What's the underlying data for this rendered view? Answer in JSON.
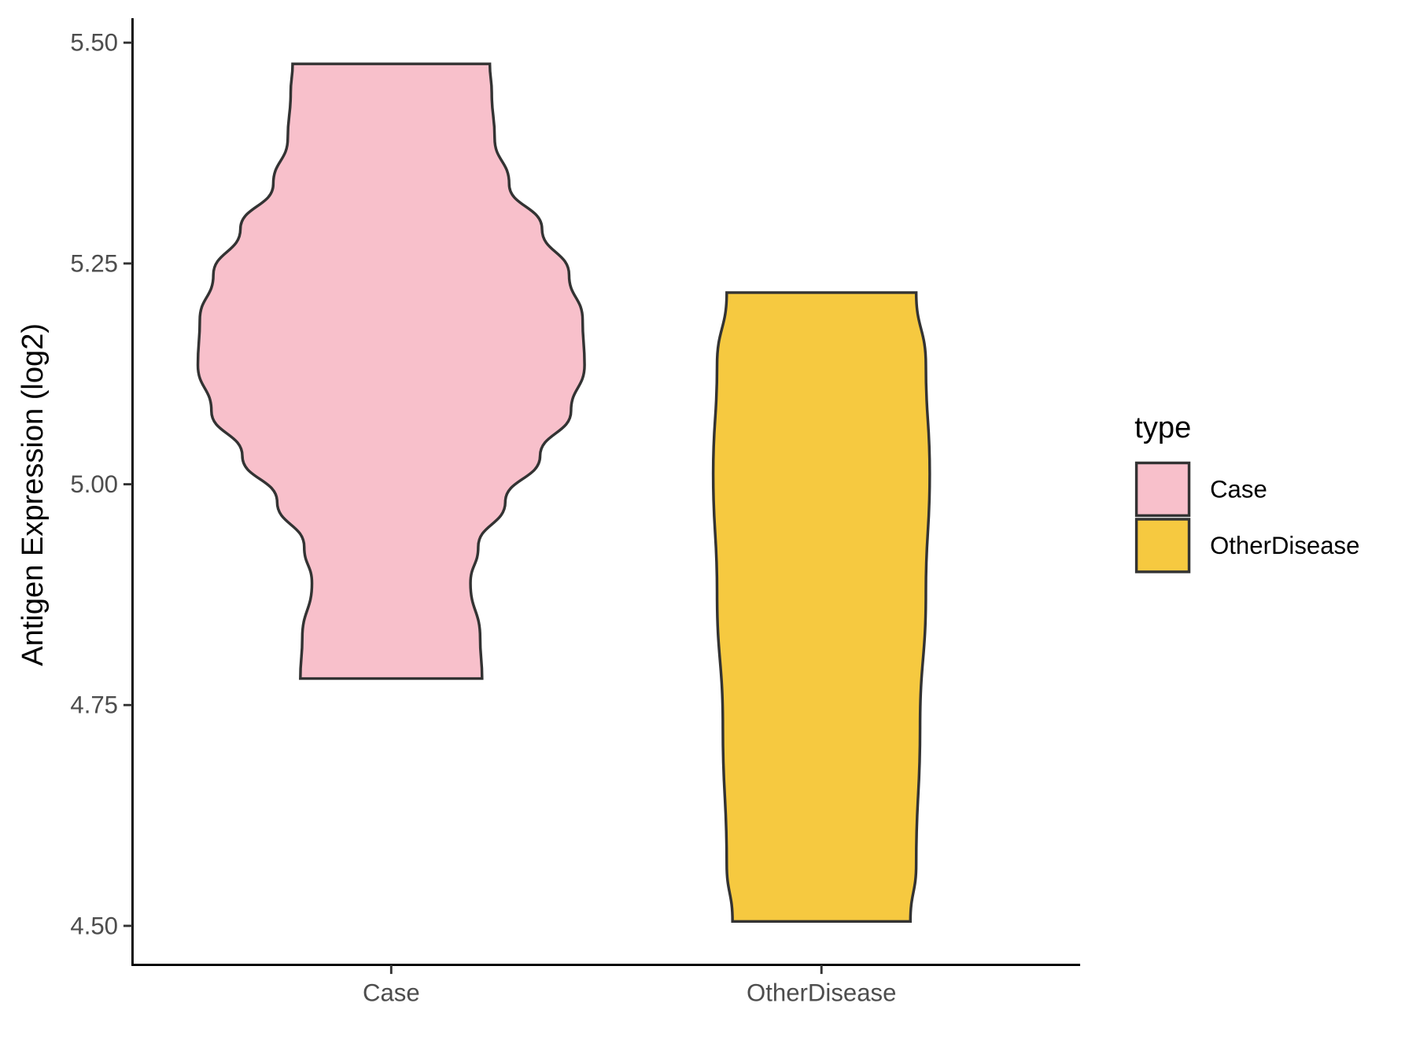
{
  "chart_data": {
    "type": "violin",
    "title": "",
    "xlabel": "",
    "ylabel": "Antigen Expression (log2)",
    "ylim": [
      4.455,
      5.53
    ],
    "yticks": [
      "4.50",
      "4.75",
      "5.00",
      "5.25",
      "5.50"
    ],
    "ytick_values": [
      4.5,
      4.75,
      5.0,
      5.25,
      5.5
    ],
    "categories": [
      "Case",
      "OtherDisease"
    ],
    "grid": false,
    "legend": {
      "title": "type",
      "position": "right",
      "entries": [
        "Case",
        "OtherDisease"
      ]
    },
    "series": [
      {
        "name": "Case",
        "color": "#F8C0CB",
        "min": 4.78,
        "max": 5.476,
        "density_profile": [
          [
            4.78,
            0.47
          ],
          [
            4.826,
            0.46
          ],
          [
            4.888,
            0.41
          ],
          [
            4.929,
            0.45
          ],
          [
            4.98,
            0.59
          ],
          [
            5.032,
            0.77
          ],
          [
            5.083,
            0.93
          ],
          [
            5.135,
            1.0
          ],
          [
            5.186,
            0.99
          ],
          [
            5.237,
            0.92
          ],
          [
            5.289,
            0.78
          ],
          [
            5.34,
            0.61
          ],
          [
            5.392,
            0.535
          ],
          [
            5.443,
            0.52
          ],
          [
            5.476,
            0.51
          ]
        ]
      },
      {
        "name": "OtherDisease",
        "color": "#F6C940",
        "min": 4.505,
        "max": 5.217,
        "density_profile": [
          [
            4.505,
            0.46
          ],
          [
            4.57,
            0.49
          ],
          [
            4.724,
            0.51
          ],
          [
            4.878,
            0.54
          ],
          [
            5.012,
            0.56
          ],
          [
            5.135,
            0.54
          ],
          [
            5.217,
            0.49
          ]
        ]
      }
    ],
    "outline_color": "#333333"
  }
}
